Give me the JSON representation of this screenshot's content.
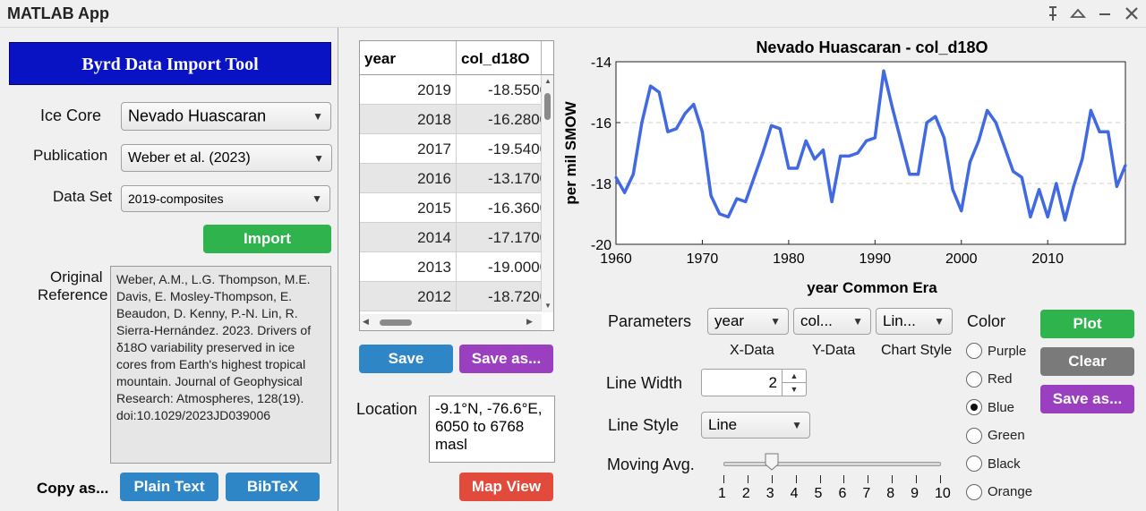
{
  "window": {
    "title": "MATLAB App",
    "controls": [
      "pin-icon",
      "collapse-icon",
      "minimize-icon",
      "close-icon"
    ]
  },
  "left": {
    "header": "Byrd Data Import Tool",
    "ice_core_label": "Ice Core",
    "ice_core_value": "Nevado Huascaran",
    "publication_label": "Publication",
    "publication_value": "Weber et al. (2023)",
    "dataset_label": "Data Set",
    "dataset_value": "2019-composites",
    "import_label": "Import",
    "reference_label_1": "Original",
    "reference_label_2": "Reference",
    "reference_text": "Weber, A.M., L.G. Thompson, M.E. Davis, E. Mosley-Thompson, E. Beaudon, D. Kenny, P.-N. Lin, R. Sierra-Hernández. 2023. Drivers of δ18O variability preserved in ice cores from Earth's highest tropical mountain. Journal of Geophysical Research: Atmospheres, 128(19). doi:10.1029/2023JD039006",
    "copy_as_label": "Copy as...",
    "plain_text_label": "Plain Text",
    "bibtex_label": "BibTeX"
  },
  "middle": {
    "columns": [
      "year",
      "col_d18O"
    ],
    "rows": [
      [
        "2019",
        "-18.5500"
      ],
      [
        "2018",
        "-16.2800"
      ],
      [
        "2017",
        "-19.5400"
      ],
      [
        "2016",
        "-13.1700"
      ],
      [
        "2015",
        "-16.3600"
      ],
      [
        "2014",
        "-17.1700"
      ],
      [
        "2013",
        "-19.0000"
      ],
      [
        "2012",
        "-18.7200"
      ]
    ],
    "save_label": "Save",
    "save_as_label": "Save as...",
    "location_label": "Location",
    "location_value": "-9.1°N, -76.6°E, 6050 to 6768 masl",
    "map_view_label": "Map View"
  },
  "controls": {
    "parameters_label": "Parameters",
    "x_data_value": "year",
    "y_data_value": "col...",
    "chart_style_value": "Lin...",
    "x_data_label": "X-Data",
    "y_data_label": "Y-Data",
    "chart_style_label": "Chart Style",
    "line_width_label": "Line Width",
    "line_width_value": "2",
    "line_style_label": "Line Style",
    "line_style_value": "Line",
    "moving_avg_label": "Moving Avg.",
    "moving_avg_value": 3,
    "slider_ticks": [
      "1",
      "2",
      "3",
      "4",
      "5",
      "6",
      "7",
      "8",
      "9",
      "10"
    ],
    "color_label": "Color",
    "colors": [
      "Purple",
      "Red",
      "Blue",
      "Green",
      "Black",
      "Orange"
    ],
    "selected_color": "Blue",
    "plot_label": "Plot",
    "clear_label": "Clear",
    "save_as_label": "Save as..."
  },
  "chart_data": {
    "type": "line",
    "title": "Nevado Huascaran - col_d18O",
    "xlabel": "year Common Era",
    "ylabel": "per mil SMOW",
    "xlim": [
      1960,
      2019
    ],
    "ylim": [
      -20,
      -14
    ],
    "xticks": [
      "1960",
      "1970",
      "1980",
      "1990",
      "2000",
      "2010"
    ],
    "yticks": [
      "-14",
      "-16",
      "-18",
      "-20"
    ],
    "grid": "y-dashed",
    "line_color": "#4169e1",
    "x": [
      1960,
      1961,
      1962,
      1963,
      1964,
      1965,
      1966,
      1967,
      1968,
      1969,
      1970,
      1971,
      1972,
      1973,
      1974,
      1975,
      1976,
      1977,
      1978,
      1979,
      1980,
      1981,
      1982,
      1983,
      1984,
      1985,
      1986,
      1987,
      1988,
      1989,
      1990,
      1991,
      1992,
      1993,
      1994,
      1995,
      1996,
      1997,
      1998,
      1999,
      2000,
      2001,
      2002,
      2003,
      2004,
      2005,
      2006,
      2007,
      2008,
      2009,
      2010,
      2011,
      2012,
      2013,
      2014,
      2015,
      2016,
      2017,
      2018,
      2019
    ],
    "y": [
      -17.8,
      -18.3,
      -17.7,
      -16.0,
      -14.8,
      -15.0,
      -16.3,
      -16.2,
      -15.7,
      -15.4,
      -16.3,
      -18.4,
      -19.0,
      -19.1,
      -18.5,
      -18.6,
      -17.8,
      -17.0,
      -16.1,
      -16.2,
      -17.5,
      -17.5,
      -16.6,
      -17.2,
      -16.9,
      -18.6,
      -17.1,
      -17.1,
      -17.0,
      -16.6,
      -16.5,
      -14.3,
      -15.5,
      -16.6,
      -17.7,
      -17.7,
      -16.0,
      -15.8,
      -16.5,
      -18.2,
      -18.9,
      -17.3,
      -16.6,
      -15.6,
      -16.0,
      -16.8,
      -17.6,
      -17.8,
      -19.1,
      -18.2,
      -19.1,
      -18.0,
      -19.2,
      -18.1,
      -17.2,
      -15.6,
      -16.3,
      -16.3,
      -18.1,
      -17.4
    ]
  }
}
